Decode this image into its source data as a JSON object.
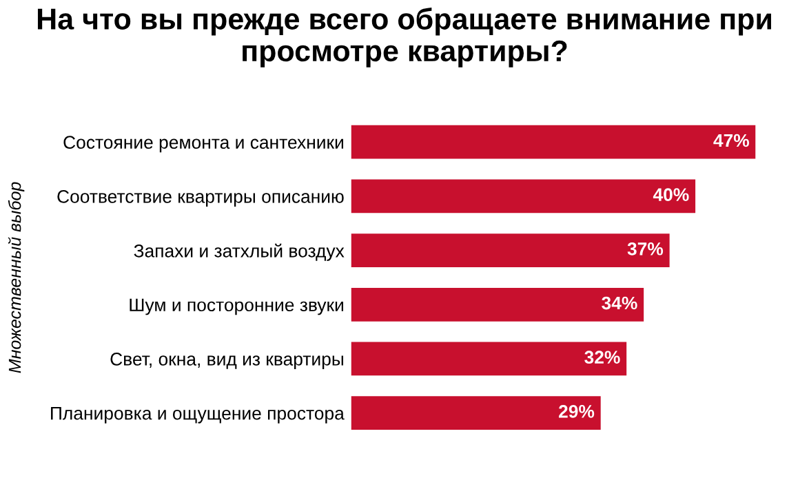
{
  "chart_data": {
    "type": "bar",
    "orientation": "horizontal",
    "title": "На что вы прежде всего обращаете внимание при просмотре квартиры?",
    "ylabel": "Множественный выбор",
    "categories": [
      "Состояние ремонта и сантехники",
      "Соответствие квартиры описанию",
      "Запахи и затхлый воздух",
      "Шум и посторонние звуки",
      "Свет, окна, вид из квартиры",
      "Планировка и ощущение простора"
    ],
    "values": [
      47,
      40,
      37,
      34,
      32,
      29
    ],
    "value_labels": [
      "47%",
      "40%",
      "37%",
      "34%",
      "32%",
      "29%"
    ],
    "color": "#c8102e",
    "tick_labels": "y",
    "grid": false,
    "legend": false
  }
}
